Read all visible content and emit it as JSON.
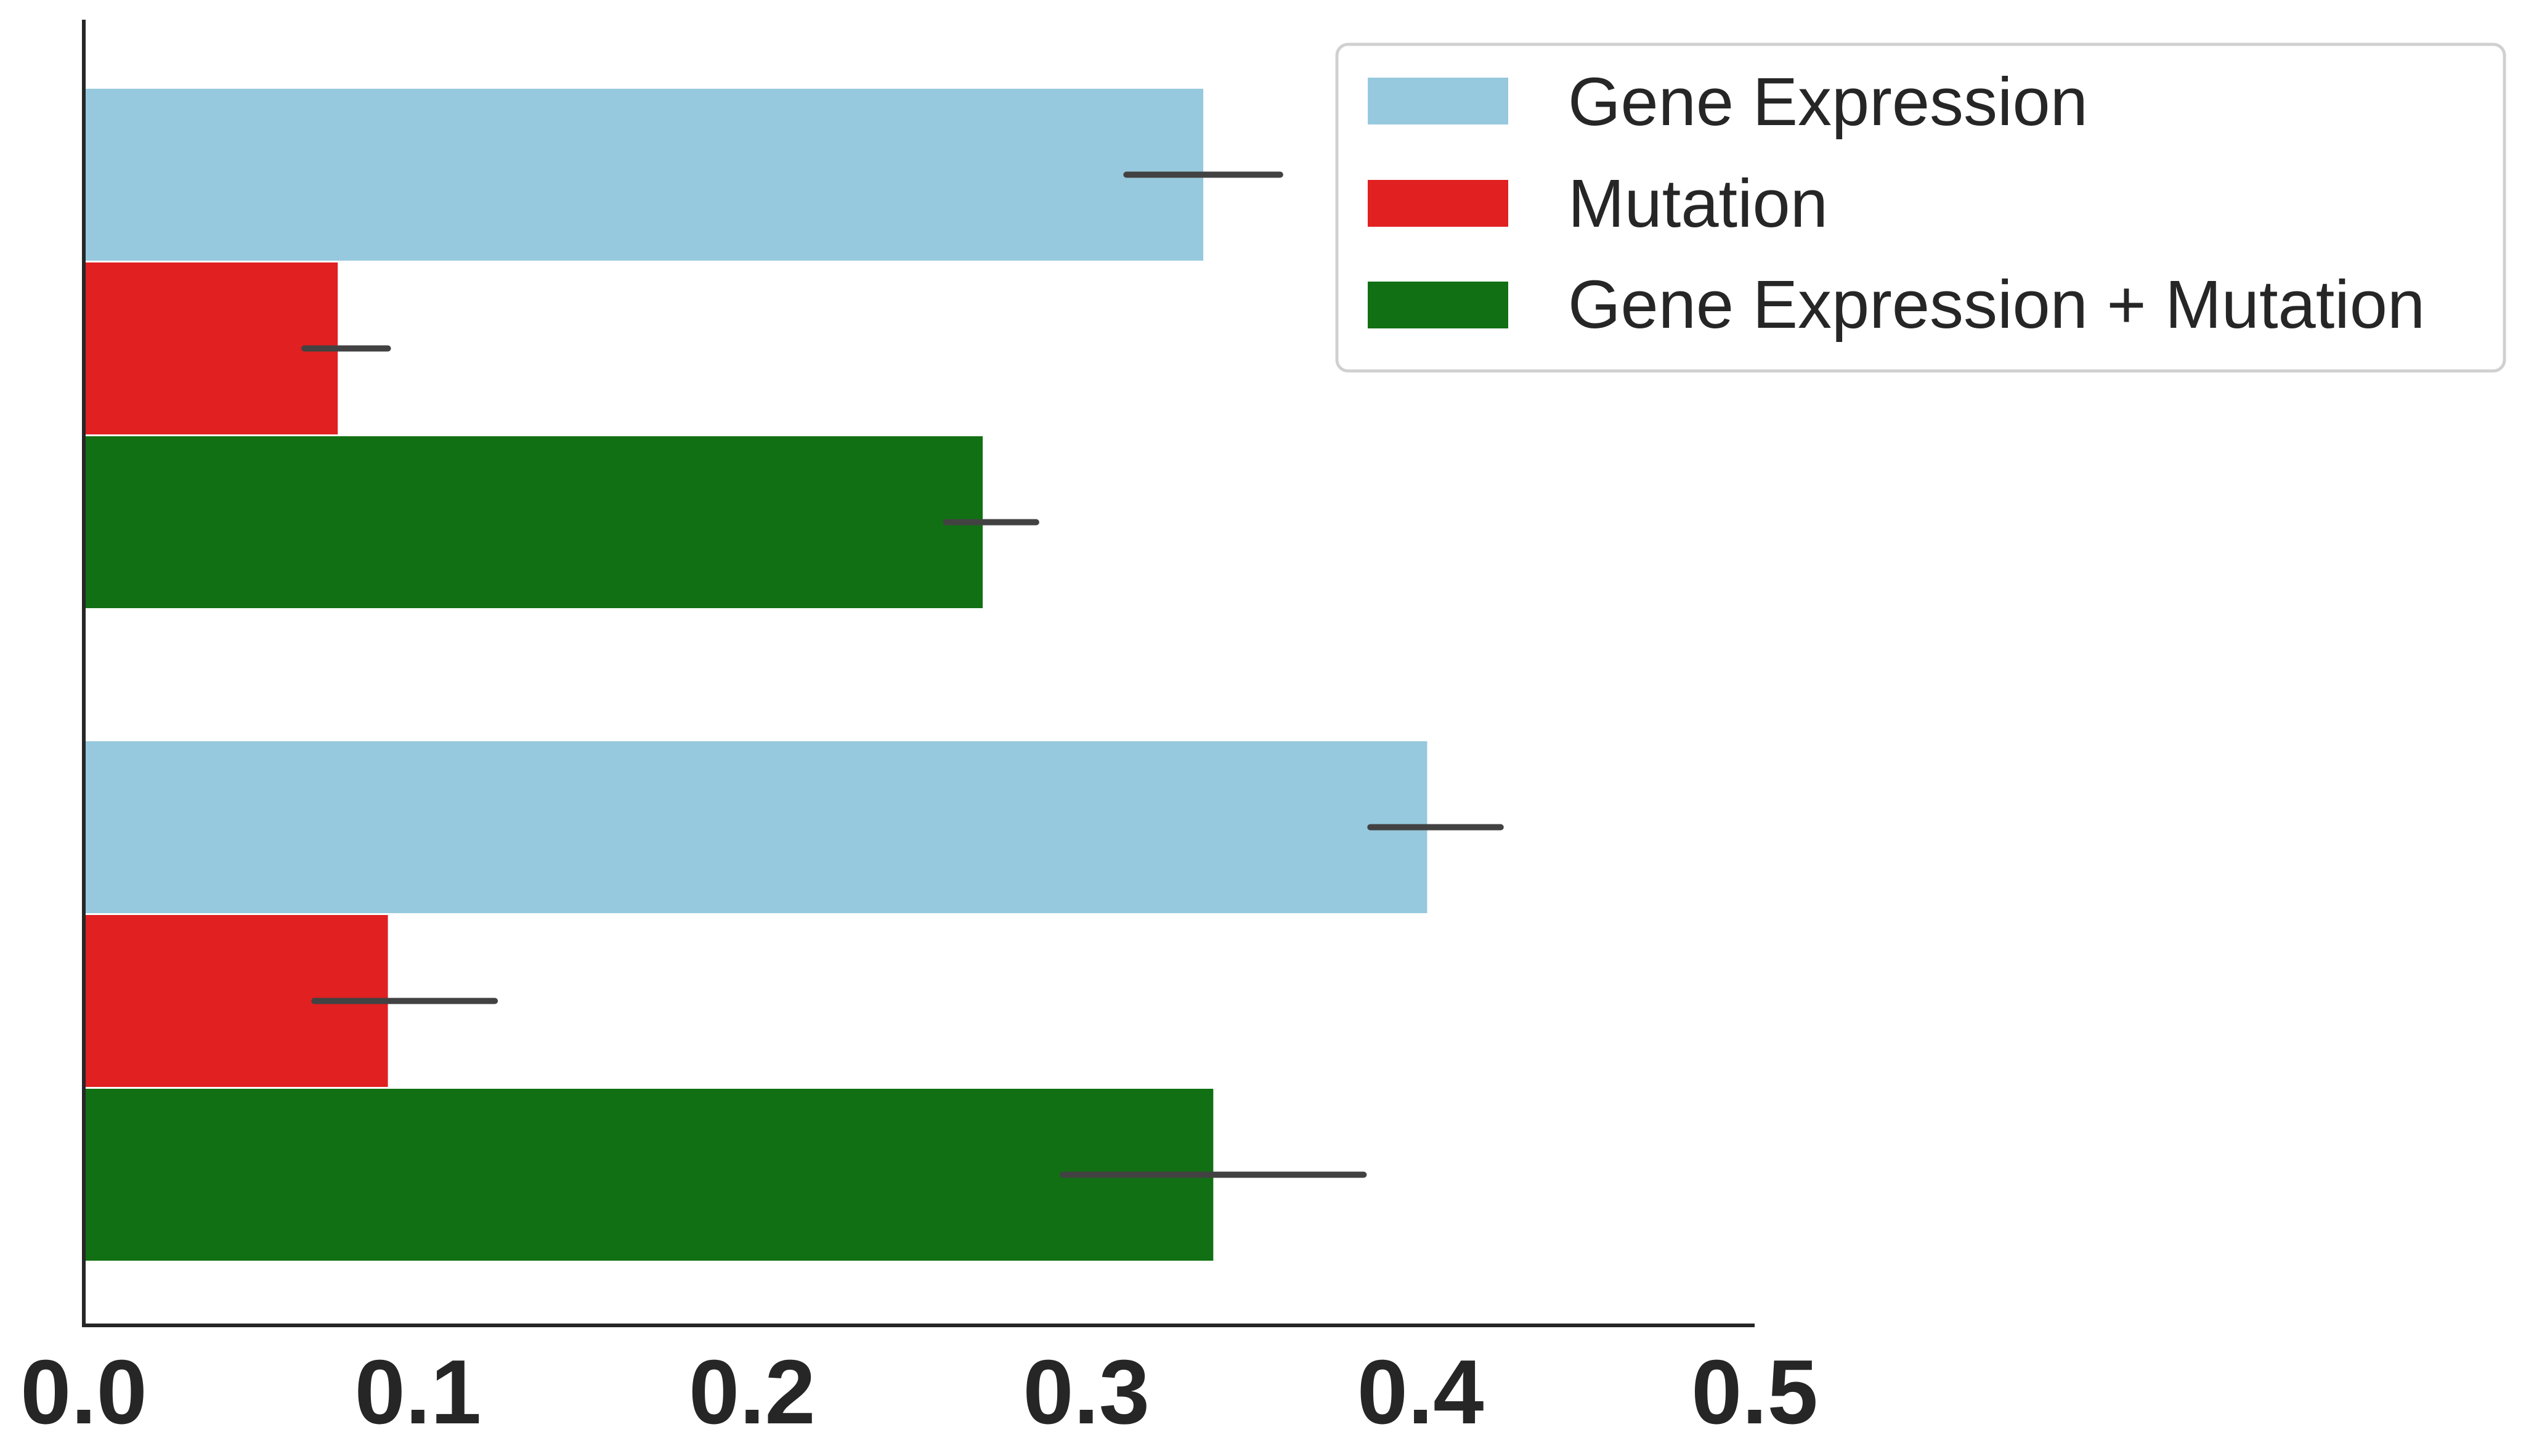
{
  "chart_data": {
    "type": "bar",
    "orientation": "horizontal",
    "title": "",
    "xlabel": "",
    "ylabel": "",
    "xlim": [
      0.0,
      0.5
    ],
    "x_ticks": [
      0.0,
      0.1,
      0.2,
      0.3,
      0.4,
      0.5
    ],
    "x_tick_labels": [
      "0.0",
      "0.1",
      "0.2",
      "0.3",
      "0.4",
      "0.5"
    ],
    "categories": [
      "",
      ""
    ],
    "grid": false,
    "legend_position": "top-right",
    "series": [
      {
        "name": "Gene Expression",
        "color": "#96c9dd",
        "values": [
          0.335,
          0.402
        ],
        "error": [
          [
            0.312,
            0.358
          ],
          [
            0.385,
            0.424
          ]
        ]
      },
      {
        "name": "Mutation",
        "color": "#e02021",
        "values": [
          0.076,
          0.091
        ],
        "error": [
          [
            0.066,
            0.091
          ],
          [
            0.069,
            0.123
          ]
        ]
      },
      {
        "name": "Gene Expression + Mutation",
        "color": "#117013",
        "values": [
          0.269,
          0.338
        ],
        "error": [
          [
            0.258,
            0.285
          ],
          [
            0.293,
            0.383
          ]
        ]
      }
    ],
    "error_bar_color": "#424242"
  }
}
